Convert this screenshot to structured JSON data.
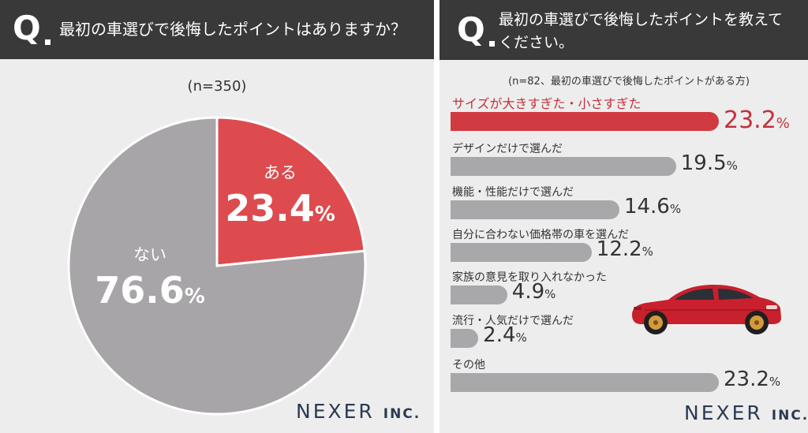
{
  "left": {
    "q_mark": "Q",
    "question": "最初の車選びで後悔したポイントはありますか？",
    "sample": "(n=350)",
    "logo_main": "NEXER",
    "logo_inc": "INC.",
    "pie_unit": "%"
  },
  "right": {
    "q_mark": "Q",
    "question": "最初の車選びで後悔したポイントを教えてください。",
    "sample": "(n=82、最初の車選びで後悔したポイントがある方)",
    "logo_main": "NEXER",
    "logo_inc": "INC.",
    "bar_unit": "%"
  },
  "colors": {
    "header_bg": "#393939",
    "panel_bg": "#ededed",
    "accent_red": "#cf3b41",
    "pie_red": "#dd4b4e",
    "pie_gray": "#a7a5a8",
    "bar_gray": "#a8a7a9",
    "logo_navy": "#2b3a52",
    "car_red": "#c8202c"
  },
  "chart_data": [
    {
      "type": "pie",
      "title": "",
      "slices": [
        {
          "label": "ある",
          "value": 23.4,
          "display": "23.4",
          "color": "#dd4b4e"
        },
        {
          "label": "ない",
          "value": 76.6,
          "display": "76.6",
          "color": "#a7a5a8"
        }
      ],
      "unit": "%",
      "sample_size": "(n=350)"
    },
    {
      "type": "bar",
      "orientation": "horizontal",
      "categories": [
        "サイズが大きすぎた・小さすぎた",
        "デザインだけで選んだ",
        "機能・性能だけで選んだ",
        "自分に合わない価格帯の車を選んだ",
        "家族の意見を取り入れなかった",
        "流行・人気だけで選んだ",
        "その他"
      ],
      "values": [
        23.2,
        19.5,
        14.6,
        12.2,
        4.9,
        2.4,
        23.2
      ],
      "display_values": [
        "23.2",
        "19.5",
        "14.6",
        "12.2",
        "4.9",
        "2.4",
        "23.2"
      ],
      "highlight_index": 0,
      "unit": "%",
      "sample_size": "(n=82、最初の車選びで後悔したポイントがある方)"
    }
  ]
}
